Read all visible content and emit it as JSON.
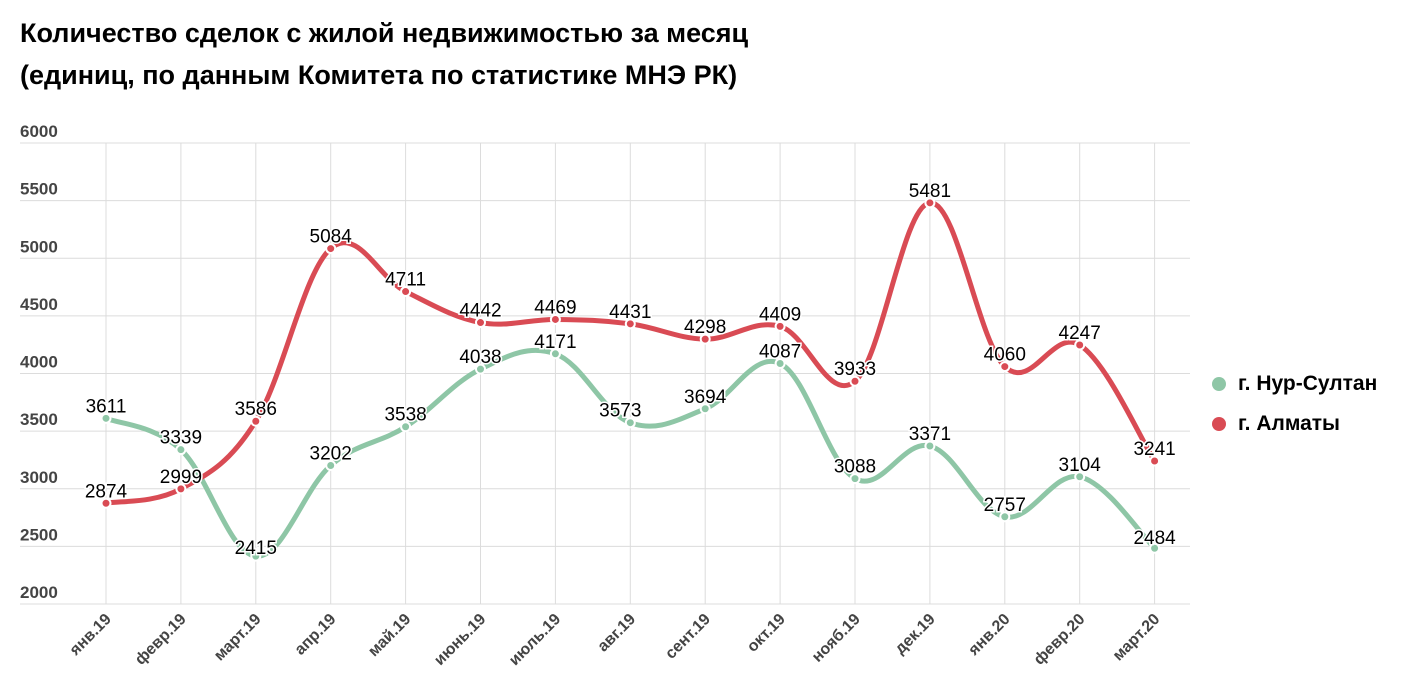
{
  "chart_data": {
    "type": "line",
    "title": "Количество сделок с жилой недвижимостью за месяц",
    "subtitle": "(единиц, по данным Комитета по статистике МНЭ РК)",
    "categories": [
      "янв.19",
      "февр.19",
      "март.19",
      "апр.19",
      "май.19",
      "июнь.19",
      "июль.19",
      "авг.19",
      "сент.19",
      "окт.19",
      "нояб.19",
      "дек.19",
      "янв.20",
      "февр.20",
      "март.20"
    ],
    "series": [
      {
        "name": "г. Нур-Султан",
        "color": "#8ec6a6",
        "values": [
          3611,
          3339,
          2415,
          3202,
          3538,
          4038,
          4171,
          3573,
          3694,
          4087,
          3088,
          3371,
          2757,
          3104,
          2484
        ]
      },
      {
        "name": "г. Алматы",
        "color": "#d94b54",
        "values": [
          2874,
          2999,
          3586,
          5084,
          4711,
          4442,
          4469,
          4431,
          4298,
          4409,
          3933,
          5481,
          4060,
          4247,
          3241
        ]
      }
    ],
    "yticks": [
      "6000",
      "5500",
      "5000",
      "4500",
      "4000",
      "3500",
      "3000",
      "2500",
      "2000"
    ],
    "ylim": [
      2000,
      6000
    ],
    "grid": true,
    "legend": "right"
  }
}
